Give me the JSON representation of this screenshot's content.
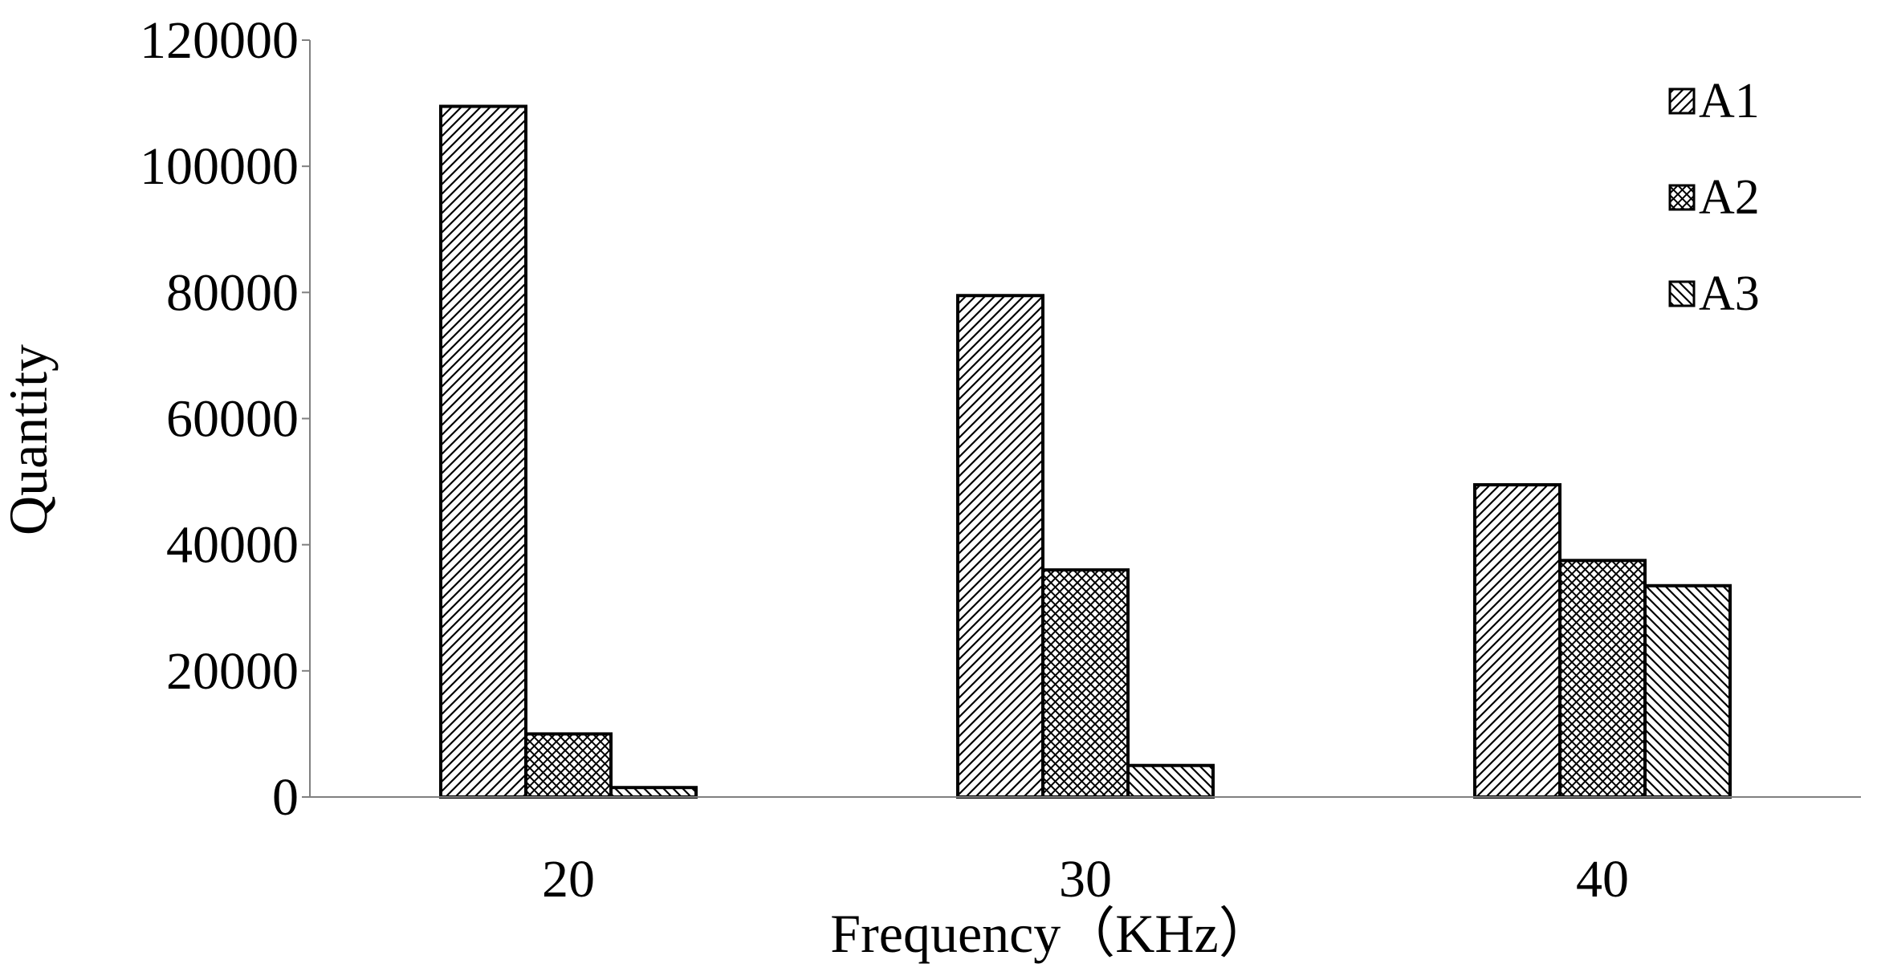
{
  "chart_data": {
    "type": "bar",
    "categories": [
      "20",
      "30",
      "40"
    ],
    "series": [
      {
        "name": "A1",
        "values": [
          109500,
          79500,
          49500
        ],
        "pattern": "hatch-diag-right"
      },
      {
        "name": "A2",
        "values": [
          10000,
          36000,
          37500
        ],
        "pattern": "hatch-cross"
      },
      {
        "name": "A3",
        "values": [
          1500,
          5000,
          33500
        ],
        "pattern": "hatch-diag-left"
      }
    ],
    "xlabel": "Frequency（KHz）",
    "ylabel": "Quantity",
    "ylim": [
      0,
      120000
    ],
    "yticks": [
      0,
      20000,
      40000,
      60000,
      80000,
      100000,
      120000
    ],
    "ytick_labels": [
      "0",
      "20000",
      "40000",
      "60000",
      "80000",
      "100000",
      "120000"
    ],
    "grid": false,
    "legend_position": "top-right",
    "colors": {
      "bar_fill": "#ffffff",
      "bar_stroke": "#000000",
      "hatch": "#000000",
      "axis": "#808080"
    }
  }
}
